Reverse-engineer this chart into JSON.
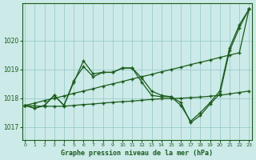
{
  "xlabel_label": "Graphe pression niveau de la mer (hPa)",
  "bg_color": "#cceae8",
  "grid_color": "#99cccc",
  "line_color": "#1a5c1a",
  "ylim": [
    1016.55,
    1021.3
  ],
  "xlim": [
    -0.3,
    23.3
  ],
  "yticks": [
    1017,
    1018,
    1019,
    1020
  ],
  "xticks": [
    0,
    1,
    2,
    3,
    4,
    5,
    6,
    7,
    8,
    9,
    10,
    11,
    12,
    13,
    14,
    15,
    16,
    17,
    18,
    19,
    20,
    21,
    22,
    23
  ],
  "series1": [
    1017.75,
    1017.65,
    1017.75,
    1018.1,
    1017.75,
    1018.55,
    1019.3,
    1018.85,
    1018.9,
    1018.9,
    1019.05,
    1019.05,
    1018.55,
    1018.1,
    1018.05,
    1018.05,
    1017.75,
    1017.2,
    1017.5,
    1017.85,
    1018.25,
    1019.75,
    1020.55,
    1021.1
  ],
  "series2": [
    1017.75,
    1017.65,
    1017.75,
    1018.1,
    1017.75,
    1018.6,
    1019.1,
    1018.75,
    1018.9,
    1018.9,
    1019.05,
    1019.05,
    1018.7,
    1018.25,
    1018.1,
    1018.05,
    1017.85,
    1017.15,
    1017.4,
    1017.8,
    1018.15,
    1019.65,
    1020.45,
    1021.1
  ],
  "series3": [
    1017.75,
    1017.83,
    1017.92,
    1018.0,
    1018.08,
    1018.17,
    1018.25,
    1018.33,
    1018.42,
    1018.5,
    1018.58,
    1018.67,
    1018.75,
    1018.83,
    1018.92,
    1019.0,
    1019.08,
    1019.17,
    1019.25,
    1019.33,
    1019.42,
    1019.5,
    1019.58,
    1021.1
  ],
  "series4": [
    1017.75,
    1017.73,
    1017.72,
    1017.72,
    1017.72,
    1017.75,
    1017.78,
    1017.8,
    1017.83,
    1017.86,
    1017.88,
    1017.9,
    1017.93,
    1017.96,
    1017.98,
    1017.99,
    1018.0,
    1018.02,
    1018.04,
    1018.07,
    1018.1,
    1018.15,
    1018.2,
    1018.25
  ]
}
